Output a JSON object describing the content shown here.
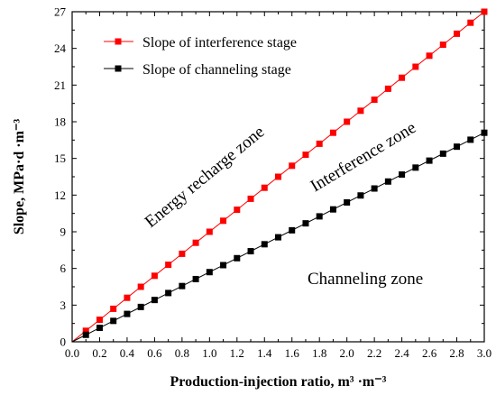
{
  "chart_data": {
    "type": "line",
    "xlabel": "Production-injection ratio, m³ ·m⁻³",
    "ylabel": "Slope, MPa·d ·m⁻³",
    "xlim": [
      0.0,
      3.0
    ],
    "ylim": [
      0,
      27
    ],
    "xticks": [
      "0.0",
      "0.2",
      "0.4",
      "0.6",
      "0.8",
      "1.0",
      "1.2",
      "1.4",
      "1.6",
      "1.8",
      "2.0",
      "2.2",
      "2.4",
      "2.6",
      "2.8",
      "3.0"
    ],
    "yticks": [
      "0",
      "3",
      "6",
      "9",
      "12",
      "15",
      "18",
      "21",
      "24",
      "27"
    ],
    "x": [
      0.0,
      0.1,
      0.2,
      0.3,
      0.4,
      0.5,
      0.6,
      0.7,
      0.8,
      0.9,
      1.0,
      1.1,
      1.2,
      1.3,
      1.4,
      1.5,
      1.6,
      1.7,
      1.8,
      1.9,
      2.0,
      2.1,
      2.2,
      2.3,
      2.4,
      2.5,
      2.6,
      2.7,
      2.8,
      2.9,
      3.0
    ],
    "series": [
      {
        "name": "Slope of interference stage",
        "color": "#ff0000",
        "marker": "square",
        "values": [
          0.0,
          0.9,
          1.8,
          2.7,
          3.6,
          4.5,
          5.4,
          6.3,
          7.2,
          8.1,
          9.0,
          9.9,
          10.8,
          11.7,
          12.6,
          13.5,
          14.4,
          15.3,
          16.2,
          17.1,
          18.0,
          18.9,
          19.8,
          20.7,
          21.6,
          22.5,
          23.4,
          24.3,
          25.2,
          26.1,
          27.0
        ]
      },
      {
        "name": "Slope of channeling stage",
        "color": "#000000",
        "marker": "square",
        "values": [
          0.0,
          0.57,
          1.14,
          1.71,
          2.28,
          2.85,
          3.42,
          3.99,
          4.56,
          5.13,
          5.7,
          6.27,
          6.84,
          7.41,
          7.98,
          8.55,
          9.12,
          9.69,
          10.26,
          10.83,
          11.4,
          11.97,
          12.54,
          13.11,
          13.68,
          14.25,
          14.82,
          15.39,
          15.96,
          16.53,
          17.1
        ]
      }
    ],
    "legend": "top-left",
    "grid": false,
    "annotations": [
      "Energy recharge zone",
      "Interference zone",
      "Channeling zone"
    ]
  }
}
